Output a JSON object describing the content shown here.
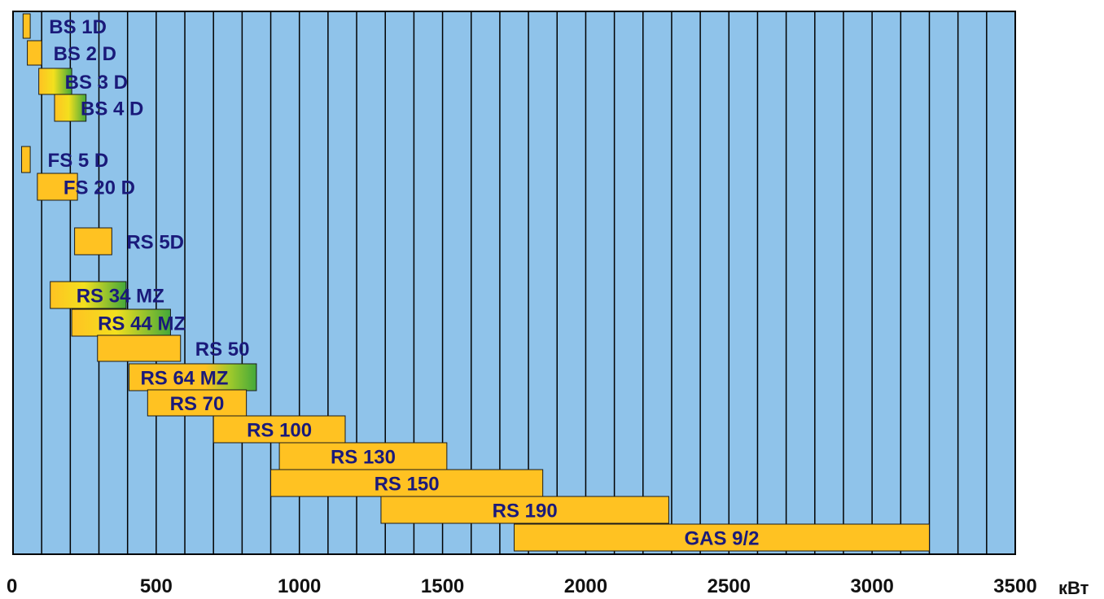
{
  "chart_data": {
    "type": "bar",
    "orientation": "horizontal-range",
    "x_unit": "кВт",
    "xlim": [
      0,
      3500
    ],
    "x_ticks": [
      0,
      500,
      1000,
      1500,
      2000,
      2500,
      3000,
      3500
    ],
    "grid": true,
    "grid_step": 100,
    "colors": {
      "background": "#8fc3ea",
      "bar_fill": "#ffc222",
      "bar_green": "#43a83a",
      "bar_stroke": "#1a1a1a",
      "grid": "#000000"
    },
    "series": [
      {
        "name": "BS 1D",
        "min": 35,
        "max": 60,
        "fill": "solid"
      },
      {
        "name": "BS 2 D",
        "min": 50,
        "max": 100,
        "fill": "solid"
      },
      {
        "name": "BS 3 D",
        "min": 90,
        "max": 205,
        "fill": "gradient"
      },
      {
        "name": "BS 4 D",
        "min": 145,
        "max": 255,
        "fill": "gradient"
      },
      {
        "name": "FS 5 D",
        "min": 30,
        "max": 60,
        "fill": "solid"
      },
      {
        "name": "FS 20 D",
        "min": 85,
        "max": 225,
        "fill": "solid"
      },
      {
        "name": "RS 5D",
        "min": 215,
        "max": 345,
        "fill": "solid"
      },
      {
        "name": "RS 34 MZ",
        "min": 130,
        "max": 395,
        "fill": "gradient"
      },
      {
        "name": "RS 44 MZ",
        "min": 205,
        "max": 550,
        "fill": "gradient"
      },
      {
        "name": "RS 50",
        "min": 295,
        "max": 585,
        "fill": "solid"
      },
      {
        "name": "RS 64 MZ",
        "min": 405,
        "max": 850,
        "fill": "gradient-right"
      },
      {
        "name": "RS 70",
        "min": 470,
        "max": 815,
        "fill": "solid"
      },
      {
        "name": "RS 100",
        "min": 700,
        "max": 1160,
        "fill": "solid"
      },
      {
        "name": "RS 130",
        "min": 930,
        "max": 1515,
        "fill": "solid"
      },
      {
        "name": "RS 150",
        "min": 900,
        "max": 1850,
        "fill": "solid"
      },
      {
        "name": "RS 190",
        "min": 1285,
        "max": 2290,
        "fill": "solid"
      },
      {
        "name": "GAS 9/2",
        "min": 1750,
        "max": 3200,
        "fill": "solid"
      }
    ]
  }
}
